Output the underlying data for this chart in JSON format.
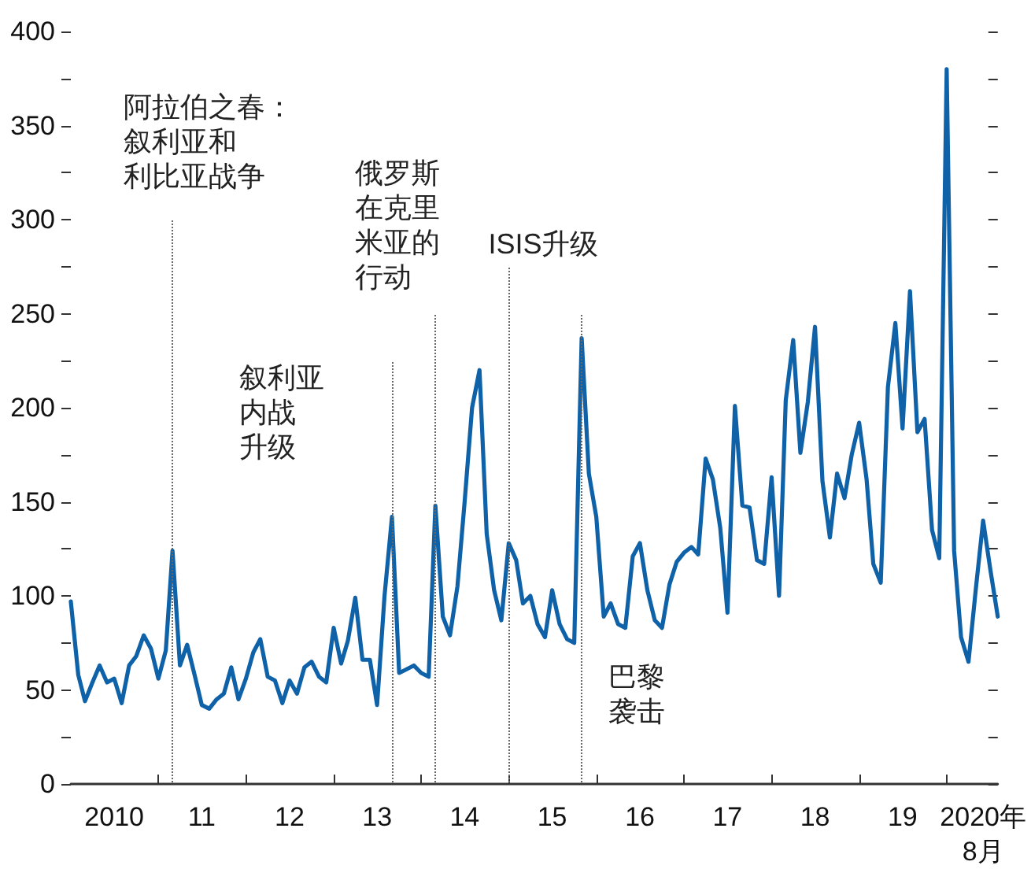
{
  "chart_data": {
    "type": "line",
    "x": [
      "2010-01",
      "2010-02",
      "2010-03",
      "2010-04",
      "2010-05",
      "2010-06",
      "2010-07",
      "2010-08",
      "2010-09",
      "2010-10",
      "2010-11",
      "2010-12",
      "2011-01",
      "2011-02",
      "2011-03",
      "2011-04",
      "2011-05",
      "2011-06",
      "2011-07",
      "2011-08",
      "2011-09",
      "2011-10",
      "2011-11",
      "2011-12",
      "2012-01",
      "2012-02",
      "2012-03",
      "2012-04",
      "2012-05",
      "2012-06",
      "2012-07",
      "2012-08",
      "2012-09",
      "2012-10",
      "2012-11",
      "2012-12",
      "2013-01",
      "2013-02",
      "2013-03",
      "2013-04",
      "2013-05",
      "2013-06",
      "2013-07",
      "2013-08",
      "2013-09",
      "2013-10",
      "2013-11",
      "2013-12",
      "2014-01",
      "2014-02",
      "2014-03",
      "2014-04",
      "2014-05",
      "2014-06",
      "2014-07",
      "2014-08",
      "2014-09",
      "2014-10",
      "2014-11",
      "2014-12",
      "2015-01",
      "2015-02",
      "2015-03",
      "2015-04",
      "2015-05",
      "2015-06",
      "2015-07",
      "2015-08",
      "2015-09",
      "2015-10",
      "2015-11",
      "2015-12",
      "2016-01",
      "2016-02",
      "2016-03",
      "2016-04",
      "2016-05",
      "2016-06",
      "2016-07",
      "2016-08",
      "2016-09",
      "2016-10",
      "2016-11",
      "2016-12",
      "2017-01",
      "2017-02",
      "2017-03",
      "2017-04",
      "2017-05",
      "2017-06",
      "2017-07",
      "2017-08",
      "2017-09",
      "2017-10",
      "2017-11",
      "2017-12",
      "2018-01",
      "2018-02",
      "2018-03",
      "2018-04",
      "2018-05",
      "2018-06",
      "2018-07",
      "2018-08",
      "2018-09",
      "2018-10",
      "2018-11",
      "2018-12",
      "2019-01",
      "2019-02",
      "2019-03",
      "2019-04",
      "2019-05",
      "2019-06",
      "2019-07",
      "2019-08",
      "2019-09",
      "2019-10",
      "2019-11",
      "2019-12",
      "2020-01",
      "2020-02",
      "2020-03",
      "2020-04",
      "2020-05",
      "2020-06",
      "2020-07",
      "2020-08"
    ],
    "values": [
      97,
      58,
      44,
      54,
      63,
      54,
      56,
      43,
      63,
      68,
      79,
      72,
      56,
      71,
      124,
      63,
      74,
      58,
      42,
      40,
      45,
      48,
      62,
      45,
      56,
      70,
      77,
      57,
      55,
      43,
      55,
      48,
      62,
      65,
      57,
      54,
      83,
      64,
      76,
      99,
      66,
      66,
      42,
      100,
      142,
      59,
      61,
      63,
      59,
      57,
      148,
      89,
      79,
      105,
      150,
      200,
      220,
      133,
      103,
      87,
      128,
      119,
      96,
      100,
      85,
      78,
      103,
      85,
      77,
      75,
      237,
      165,
      142,
      89,
      96,
      85,
      83,
      121,
      128,
      103,
      87,
      83,
      106,
      118,
      123,
      126,
      122,
      173,
      162,
      136,
      91,
      201,
      148,
      147,
      119,
      117,
      163,
      100,
      204,
      236,
      176,
      203,
      243,
      161,
      131,
      165,
      152,
      175,
      192,
      162,
      117,
      107,
      211,
      245,
      189,
      262,
      187,
      194,
      135,
      120,
      380,
      124,
      78,
      65,
      103,
      140,
      114,
      89
    ],
    "color": "#0f62a8",
    "line_style": "solid",
    "xlim": [
      "2010-01",
      "2020-08"
    ],
    "xticks": [
      {
        "value": "2010-07",
        "label": "2010"
      },
      {
        "value": "2011-01",
        "label": null
      },
      {
        "value": "2011-07",
        "label": "11"
      },
      {
        "value": "2012-01",
        "label": null
      },
      {
        "value": "2012-07",
        "label": "12"
      },
      {
        "value": "2013-01",
        "label": null
      },
      {
        "value": "2013-07",
        "label": "13"
      },
      {
        "value": "2014-01",
        "label": null
      },
      {
        "value": "2014-07",
        "label": "14"
      },
      {
        "value": "2015-01",
        "label": null
      },
      {
        "value": "2015-07",
        "label": "15"
      },
      {
        "value": "2016-01",
        "label": null
      },
      {
        "value": "2016-07",
        "label": "16"
      },
      {
        "value": "2017-01",
        "label": null
      },
      {
        "value": "2017-07",
        "label": "17"
      },
      {
        "value": "2018-01",
        "label": null
      },
      {
        "value": "2018-07",
        "label": "18"
      },
      {
        "value": "2019-01",
        "label": null
      },
      {
        "value": "2019-07",
        "label": "19"
      },
      {
        "value": "2020-01",
        "label": null
      },
      {
        "value": "2020-06",
        "label": "2020年8月"
      }
    ],
    "ylim": [
      0,
      400
    ],
    "yticks": [
      0,
      {
        "value": 25,
        "label": null
      },
      50,
      {
        "value": 75,
        "label": null
      },
      100,
      {
        "value": 125,
        "label": null
      },
      150,
      {
        "value": 175,
        "label": null
      },
      200,
      {
        "value": 225,
        "label": null
      },
      250,
      {
        "value": 275,
        "label": null
      },
      300,
      {
        "value": 325,
        "label": null
      },
      350,
      {
        "value": 375,
        "label": null
      },
      400
    ],
    "ref_lines": [
      {
        "axis": "x",
        "value": "2011-03",
        "label": "阿拉伯之春：叙利亚和利比亚战争",
        "color": "#666666",
        "line_style": "dotted"
      },
      {
        "axis": "x",
        "value": "2013-09",
        "label": "叙利亚内战升级",
        "color": "#666666",
        "line_style": "dotted"
      },
      {
        "axis": "x",
        "value": "2014-03",
        "label": "俄罗斯在克里米亚的行动",
        "color": "#666666",
        "line_style": "dotted"
      },
      {
        "axis": "x",
        "value": "2015-01",
        "label": "ISIS升级",
        "color": "#666666",
        "line_style": "dotted"
      },
      {
        "axis": "x",
        "value": "2015-11",
        "label": "巴黎袭击",
        "color": "#666666",
        "line_style": "dotted"
      }
    ]
  }
}
